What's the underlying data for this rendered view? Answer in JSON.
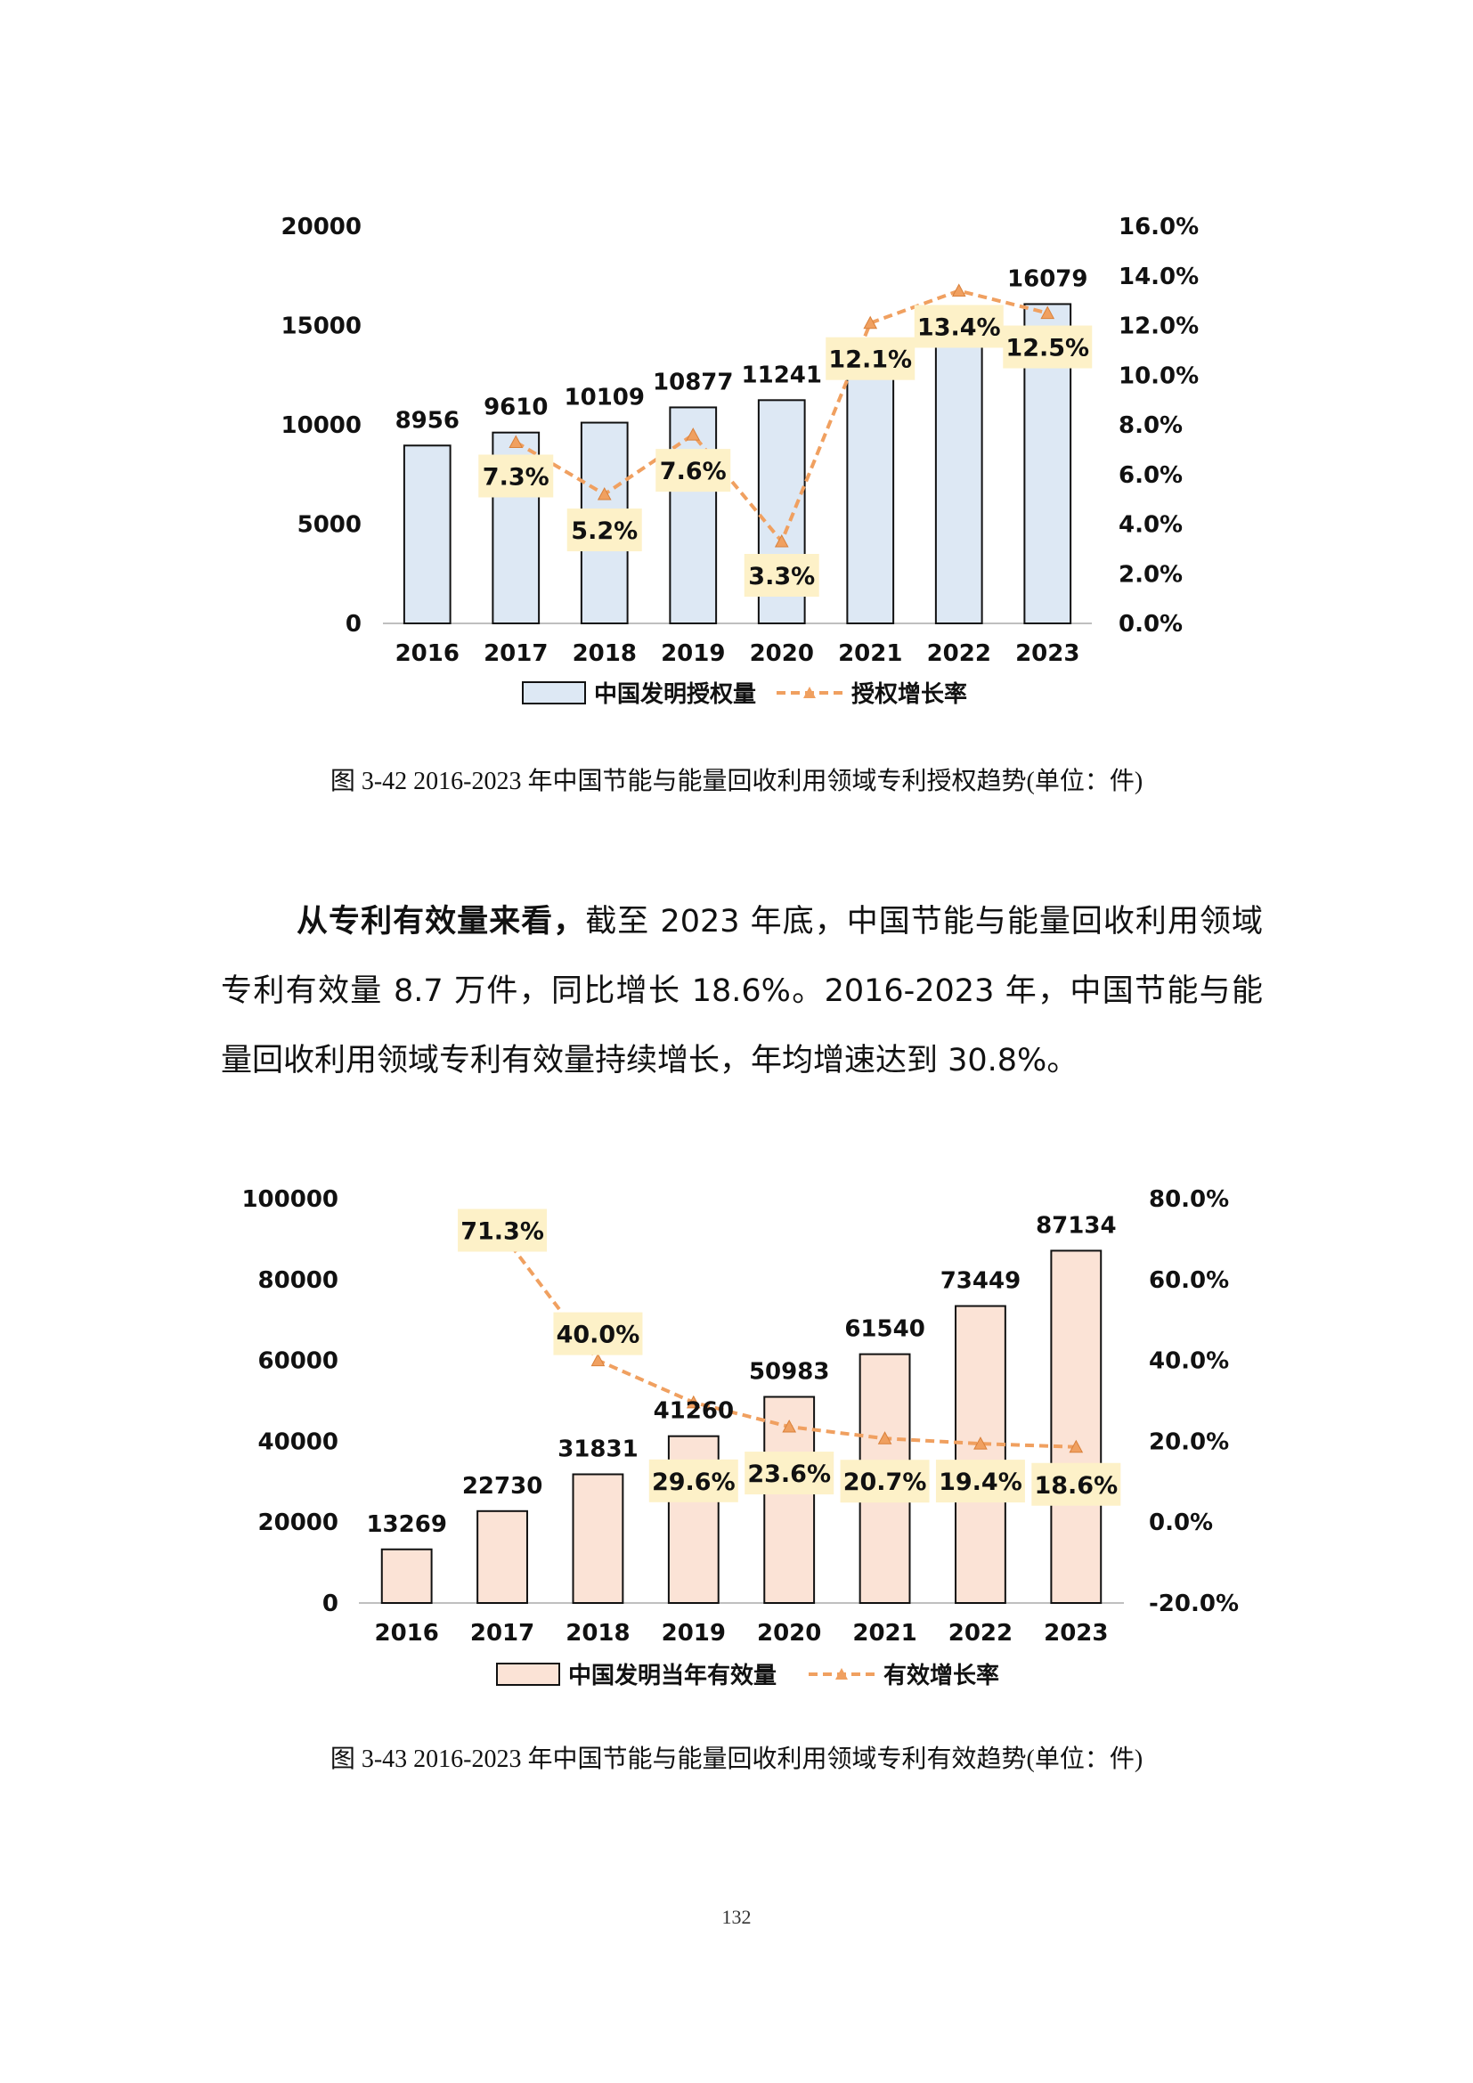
{
  "chart_data": [
    {
      "type": "bar",
      "title": "",
      "categories": [
        "2016",
        "2017",
        "2018",
        "2019",
        "2020",
        "2021",
        "2022",
        "2023"
      ],
      "series": [
        {
          "name": "中国发明授权量",
          "type": "bar",
          "axis": "left",
          "values": [
            8956,
            9610,
            10109,
            10877,
            11241,
            12594,
            14281,
            16079
          ],
          "labels": [
            "8956",
            "9610",
            "10109",
            "10877",
            "11241",
            "",
            "",
            "16079"
          ]
        },
        {
          "name": "授权增长率",
          "type": "line",
          "axis": "right",
          "values": [
            null,
            7.3,
            5.2,
            7.6,
            3.3,
            12.1,
            13.4,
            12.5
          ],
          "labels": [
            "",
            "7.3%",
            "5.2%",
            "7.6%",
            "3.3%",
            "12.1%",
            "13.4%",
            "12.5%"
          ]
        }
      ],
      "y_left": {
        "min": 0,
        "max": 20000,
        "ticks": [
          "0",
          "5000",
          "10000",
          "15000",
          "20000"
        ]
      },
      "y_right": {
        "min": 0,
        "max": 16,
        "ticks": [
          "0.0%",
          "2.0%",
          "4.0%",
          "6.0%",
          "8.0%",
          "10.0%",
          "12.0%",
          "14.0%",
          "16.0%"
        ]
      },
      "bar_fill": "#dde8f4",
      "line_color": "#f0a060",
      "label_bg": "#fdf1c8",
      "legend_position": "bottom",
      "grid": false
    },
    {
      "type": "bar",
      "title": "",
      "categories": [
        "2016",
        "2017",
        "2018",
        "2019",
        "2020",
        "2021",
        "2022",
        "2023"
      ],
      "series": [
        {
          "name": "中国发明当年有效量",
          "type": "bar",
          "axis": "left",
          "values": [
            13269,
            22730,
            31831,
            41260,
            50983,
            61540,
            73449,
            87134
          ],
          "labels": [
            "13269",
            "22730",
            "31831",
            "41260",
            "50983",
            "61540",
            "73449",
            "87134"
          ]
        },
        {
          "name": "有效增长率",
          "type": "line",
          "axis": "right",
          "values": [
            null,
            71.3,
            40.0,
            29.6,
            23.6,
            20.7,
            19.4,
            18.6
          ],
          "labels": [
            "",
            "71.3%",
            "40.0%",
            "29.6%",
            "23.6%",
            "20.7%",
            "19.4%",
            "18.6%"
          ]
        }
      ],
      "y_left": {
        "min": 0,
        "max": 100000,
        "ticks": [
          "0",
          "20000",
          "40000",
          "60000",
          "80000",
          "100000"
        ]
      },
      "y_right": {
        "min": -20,
        "max": 80,
        "ticks": [
          "-20.0%",
          "0.0%",
          "20.0%",
          "40.0%",
          "60.0%",
          "80.0%"
        ]
      },
      "bar_fill": "#fbe3d6",
      "line_color": "#f0a060",
      "label_bg": "#fdf1c8",
      "legend_position": "bottom",
      "grid": false
    }
  ],
  "captions": {
    "fig1": "图 3-42 2016-2023 年中国节能与能量回收利用领域专利授权趋势(单位：件)",
    "fig2": "图 3-43 2016-2023 年中国节能与能量回收利用领域专利有效趋势(单位：件)"
  },
  "paragraph": {
    "lead": "从专利有效量来看，",
    "body": "截至 2023 年底，中国节能与能量回收利用领域专利有效量 8.7 万件，同比增长 18.6%。2016-2023 年，中国节能与能量回收利用领域专利有效量持续增长，年均增速达到 30.8%。"
  },
  "page_number": "132"
}
